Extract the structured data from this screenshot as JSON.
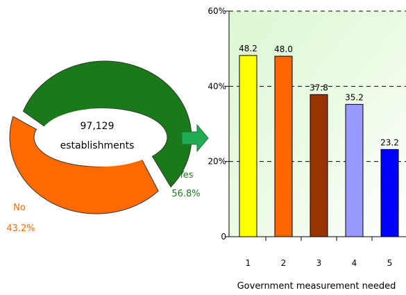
{
  "chart_data": [
    {
      "type": "pie",
      "style": "donut-exploded",
      "center_label": {
        "line1": "97,129",
        "line2": "establishments"
      },
      "slices": [
        {
          "label": "Yes",
          "value": 56.8,
          "value_label": "56.8%",
          "color": "#1a7a1a"
        },
        {
          "label": "No",
          "value": 43.2,
          "value_label": "43.2%",
          "color": "#ff6a00"
        }
      ]
    },
    {
      "type": "bar",
      "xlabel": "Government measurement needed",
      "ylabel": "",
      "ylim": [
        0,
        60
      ],
      "yticks": [
        {
          "value": 0,
          "label": "0"
        },
        {
          "value": 20,
          "label": "20%"
        },
        {
          "value": 40,
          "label": "40%"
        },
        {
          "value": 60,
          "label": "60%"
        }
      ],
      "grid": true,
      "background": "gradient-light-green",
      "categories": [
        "1",
        "2",
        "3",
        "4",
        "5"
      ],
      "values": [
        48.2,
        48.0,
        37.8,
        35.2,
        23.2
      ],
      "value_labels": [
        "48.2",
        "48.0",
        "37.8",
        "35.2",
        "23.2"
      ],
      "colors": [
        "#ffff00",
        "#ff6600",
        "#993300",
        "#9999ff",
        "#0000ff"
      ]
    }
  ],
  "connector_arrow": {
    "icon": "right-arrow-icon",
    "color": "#22aa55"
  }
}
